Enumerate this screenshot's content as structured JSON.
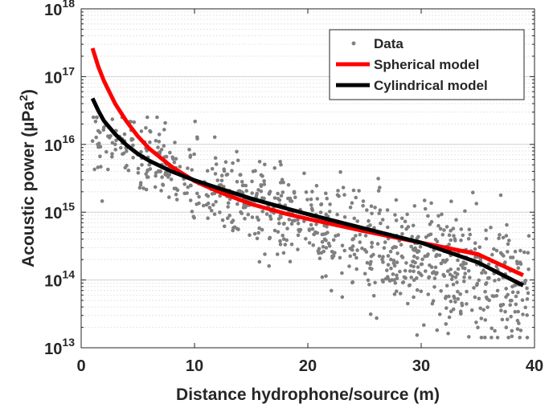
{
  "chart_data": {
    "type": "scatter",
    "title": "",
    "xlabel": "Distance hydrophone/source (m)",
    "ylabel_main": "Acoustic power (µPa",
    "ylabel_sup": "2",
    "ylabel_tail": ")",
    "xlim": [
      0,
      40
    ],
    "ylim_log10": [
      13,
      18
    ],
    "yscale": "log",
    "grid": "y-major-and-minor",
    "legend_position": "top-right",
    "x_ticks": [
      {
        "value": 0,
        "label": "0"
      },
      {
        "value": 10,
        "label": "10"
      },
      {
        "value": 20,
        "label": "20"
      },
      {
        "value": 30,
        "label": "30"
      },
      {
        "value": 40,
        "label": "40"
      }
    ],
    "y_ticks": [
      {
        "exp": 13,
        "base": "10",
        "sup": "13"
      },
      {
        "exp": 14,
        "base": "10",
        "sup": "14"
      },
      {
        "exp": 15,
        "base": "10",
        "sup": "15"
      },
      {
        "exp": 16,
        "base": "10",
        "sup": "16"
      },
      {
        "exp": 17,
        "base": "10",
        "sup": "17"
      },
      {
        "exp": 18,
        "base": "10",
        "sup": "18"
      }
    ],
    "series": [
      {
        "name": "Data",
        "kind": "scatter",
        "color": "#808080",
        "n_points": 900,
        "x_range": [
          1,
          39.5
        ],
        "trend_log10_at_x": [
          [
            1,
            16.1
          ],
          [
            5,
            15.9
          ],
          [
            10,
            15.4
          ],
          [
            15,
            15.1
          ],
          [
            20,
            14.8
          ],
          [
            25,
            14.6
          ],
          [
            30,
            14.3
          ],
          [
            35,
            14.1
          ],
          [
            39,
            13.9
          ]
        ],
        "log10_spread": 0.45,
        "points": [
          [
            1.0,
            16.05
          ],
          [
            1.5,
            16.2
          ],
          [
            2.0,
            16.25
          ],
          [
            2.5,
            16.1
          ],
          [
            3.0,
            16.0
          ],
          [
            3.5,
            15.95
          ],
          [
            4.0,
            15.9
          ],
          [
            5.0,
            15.85
          ],
          [
            6.0,
            15.7
          ],
          [
            7.0,
            15.6
          ],
          [
            33.5,
            13.5
          ],
          [
            35.0,
            13.3
          ],
          [
            36.5,
            13.25
          ],
          [
            37.5,
            13.3
          ],
          [
            38.0,
            13.25
          ],
          [
            38.5,
            13.4
          ],
          [
            39.5,
            14.65
          ]
        ]
      },
      {
        "name": "Spherical model",
        "kind": "line",
        "color": "#ff0000",
        "x": [
          1,
          1.5,
          2,
          3,
          4,
          5,
          6,
          8,
          10,
          12,
          15,
          18,
          20,
          25,
          30,
          35,
          39
        ],
        "y_log10": [
          17.42,
          17.15,
          16.94,
          16.6,
          16.34,
          16.12,
          15.94,
          15.67,
          15.46,
          15.31,
          15.12,
          14.98,
          14.9,
          14.72,
          14.55,
          14.38,
          14.07
        ]
      },
      {
        "name": "Cylindrical model",
        "kind": "line",
        "color": "#000000",
        "x": [
          1,
          1.5,
          2,
          3,
          4,
          5,
          6,
          8,
          10,
          12,
          15,
          18,
          20,
          25,
          30,
          35,
          39
        ],
        "y_log10": [
          16.68,
          16.5,
          16.35,
          16.15,
          15.99,
          15.86,
          15.76,
          15.6,
          15.47,
          15.36,
          15.2,
          15.06,
          14.97,
          14.76,
          14.55,
          14.26,
          13.92
        ]
      }
    ]
  }
}
